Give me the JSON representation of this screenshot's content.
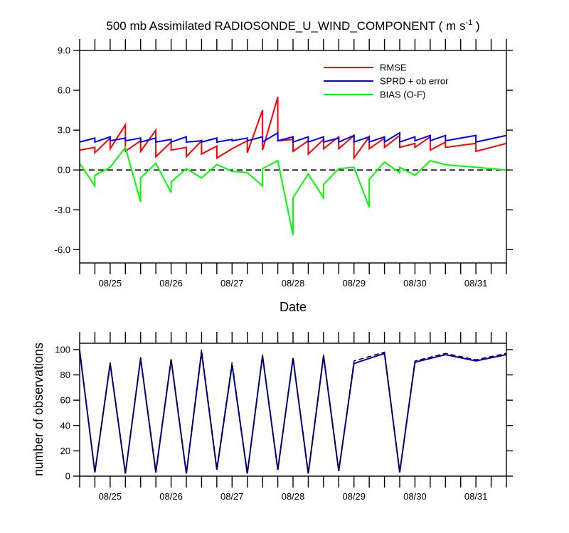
{
  "chart_data": [
    {
      "type": "line",
      "title": "500 mb Assimilated RADIOSONDE_U_WIND_COMPONENT ( m s",
      "title_superscript": "-1",
      "title_close": " )",
      "xlabel": "Date",
      "ylabel": "",
      "xlim": [
        0,
        14
      ],
      "ylim": [
        -7,
        9
      ],
      "yticks": [
        -6,
        -3,
        0,
        3,
        6,
        9
      ],
      "ytick_labels": [
        "-6.0",
        "-3.0",
        "0.0",
        "3.0",
        "6.0",
        "9.0"
      ],
      "xticks": [
        1,
        3,
        5,
        7,
        9,
        11,
        13
      ],
      "xtick_labels": [
        "08/25",
        "08/26",
        "08/27",
        "08/28",
        "08/29",
        "08/30",
        "08/31"
      ],
      "zero_line": 0,
      "legend": [
        "RMSE",
        "SPRD + ob error",
        "BIAS (O-F)"
      ],
      "legend_position": "top-right",
      "series": [
        {
          "name": "RMSE",
          "color": "#ff0000",
          "x": [
            0,
            0.5,
            0.5,
            1,
            1,
            1.5,
            1.5,
            2,
            2,
            2.5,
            2.5,
            3,
            3,
            3.5,
            3.5,
            4,
            4,
            4.5,
            4.5,
            5,
            5,
            5.5,
            5.5,
            6,
            6,
            6.5,
            6.5,
            7,
            7,
            7.5,
            7.5,
            8,
            8,
            8.5,
            8.5,
            9,
            9,
            9.5,
            9.5,
            10,
            10,
            10.5,
            10.5,
            11,
            11,
            11.5,
            11.5,
            12,
            12,
            13,
            13,
            14
          ],
          "values": [
            1.5,
            1.7,
            1.3,
            2.4,
            1.6,
            3.4,
            1.4,
            2.2,
            1.4,
            3.0,
            1.0,
            2.1,
            1.5,
            1.7,
            1.0,
            2.2,
            1.2,
            1.8,
            0.9,
            1.6,
            1.6,
            2.2,
            1.3,
            4.5,
            1.5,
            5.5,
            2.2,
            2.3,
            1.4,
            2.2,
            1.2,
            2.3,
            1.6,
            2.5,
            1.6,
            2.6,
            0.9,
            2.5,
            1.6,
            2.4,
            1.7,
            2.6,
            1.7,
            2.0,
            1.7,
            2.5,
            1.5,
            2.1,
            1.7,
            2.0,
            1.4,
            2.0
          ]
        },
        {
          "name": "SPRD + ob error",
          "color": "#0000ff",
          "x": [
            0,
            0.5,
            0.5,
            1,
            1,
            1.5,
            1.5,
            2,
            2,
            2.5,
            2.5,
            3,
            3,
            3.5,
            3.5,
            4,
            4,
            4.5,
            4.5,
            5,
            5,
            5.5,
            5.5,
            6,
            6,
            6.5,
            6.5,
            7,
            7,
            7.5,
            7.5,
            8,
            8,
            8.5,
            8.5,
            9,
            9,
            9.5,
            9.5,
            10,
            10,
            10.5,
            10.5,
            11,
            11,
            11.5,
            11.5,
            12,
            12,
            13,
            13,
            14
          ],
          "values": [
            2.1,
            2.4,
            2.1,
            2.5,
            2.2,
            2.4,
            2.2,
            2.4,
            2.1,
            2.4,
            2.1,
            2.3,
            2.1,
            2.5,
            2.1,
            2.2,
            2.1,
            2.4,
            2.1,
            2.3,
            2.2,
            2.4,
            2.2,
            2.5,
            2.1,
            2.8,
            2.2,
            2.5,
            2.1,
            2.5,
            2.1,
            2.5,
            2.1,
            2.4,
            2.1,
            2.6,
            2.1,
            2.5,
            2.1,
            2.5,
            2.1,
            2.8,
            2.1,
            2.5,
            2.2,
            2.6,
            2.2,
            2.6,
            2.2,
            2.6,
            2.1,
            2.6
          ]
        },
        {
          "name": "BIAS (O-F)",
          "color": "#00ff00",
          "x": [
            0,
            0.5,
            0.5,
            1,
            1,
            1.5,
            1.5,
            2,
            2,
            2.5,
            2.5,
            3,
            3,
            3.5,
            3.5,
            4,
            4,
            4.5,
            4.5,
            5,
            5,
            5.5,
            5.5,
            6,
            6,
            6.5,
            6.5,
            7,
            7,
            7.5,
            7.5,
            8,
            8,
            8.5,
            8.5,
            9,
            9,
            9.5,
            9.5,
            10,
            10,
            10.5,
            10.5,
            11,
            11,
            11.5,
            11.5,
            12,
            12,
            13,
            13,
            14
          ],
          "values": [
            0.5,
            -1.2,
            -0.4,
            0.2,
            0.2,
            1.7,
            1.7,
            -2.4,
            -0.6,
            0.5,
            0.5,
            -1.7,
            -0.9,
            0.1,
            0.1,
            -0.6,
            -0.6,
            0.4,
            0.4,
            -0.1,
            -0.1,
            -0.2,
            -0.2,
            -1.2,
            0.1,
            0.7,
            0.7,
            -4.9,
            -2.1,
            -0.3,
            -0.3,
            -2.1,
            -1.1,
            0.1,
            0.1,
            0.2,
            0.2,
            -2.8,
            -0.7,
            0.6,
            0.6,
            -0.2,
            0.2,
            -0.4,
            -0.4,
            0.7,
            0.7,
            0.4,
            0.4,
            0.2,
            0.2,
            0.0
          ]
        }
      ]
    },
    {
      "type": "line",
      "title": "",
      "xlabel": "",
      "ylabel": "number of observations",
      "xlim": [
        0,
        14
      ],
      "ylim": [
        0,
        105
      ],
      "yticks": [
        0,
        20,
        40,
        60,
        80,
        100
      ],
      "ytick_labels": [
        "0",
        "20",
        "40",
        "60",
        "80",
        "100"
      ],
      "xticks": [
        1,
        3,
        5,
        7,
        9,
        11,
        13
      ],
      "xtick_labels": [
        "08/25",
        "08/26",
        "08/27",
        "08/28",
        "08/29",
        "08/30",
        "08/31"
      ],
      "series": [
        {
          "name": "observations",
          "color": "#0000cc",
          "style": "solid",
          "x": [
            0,
            0.5,
            1,
            1.5,
            2,
            2.5,
            3,
            3.5,
            4,
            4.5,
            5,
            5.5,
            6,
            6.5,
            7,
            7.5,
            8,
            8.5,
            9,
            10,
            10.5,
            11,
            12,
            13,
            14
          ],
          "values": [
            99,
            3,
            89,
            2,
            93,
            3,
            92,
            2,
            98,
            5,
            88,
            2,
            95,
            5,
            93,
            2,
            95,
            4,
            89,
            97,
            3,
            90,
            96,
            91,
            96
          ]
        },
        {
          "name": "observations (dashed)",
          "color": "#000000",
          "style": "dashed",
          "x": [
            0,
            0.5,
            1,
            1.5,
            2,
            2.5,
            3,
            3.5,
            4,
            4.5,
            5,
            5.5,
            6,
            6.5,
            7,
            7.5,
            8,
            8.5,
            9,
            10,
            10.5,
            11,
            12,
            13,
            14
          ],
          "values": [
            100,
            3,
            90,
            2,
            94,
            4,
            93,
            2,
            100,
            6,
            90,
            2,
            96,
            5,
            94,
            2,
            96,
            4,
            91,
            98,
            3,
            91,
            97,
            92,
            97
          ]
        }
      ]
    }
  ]
}
